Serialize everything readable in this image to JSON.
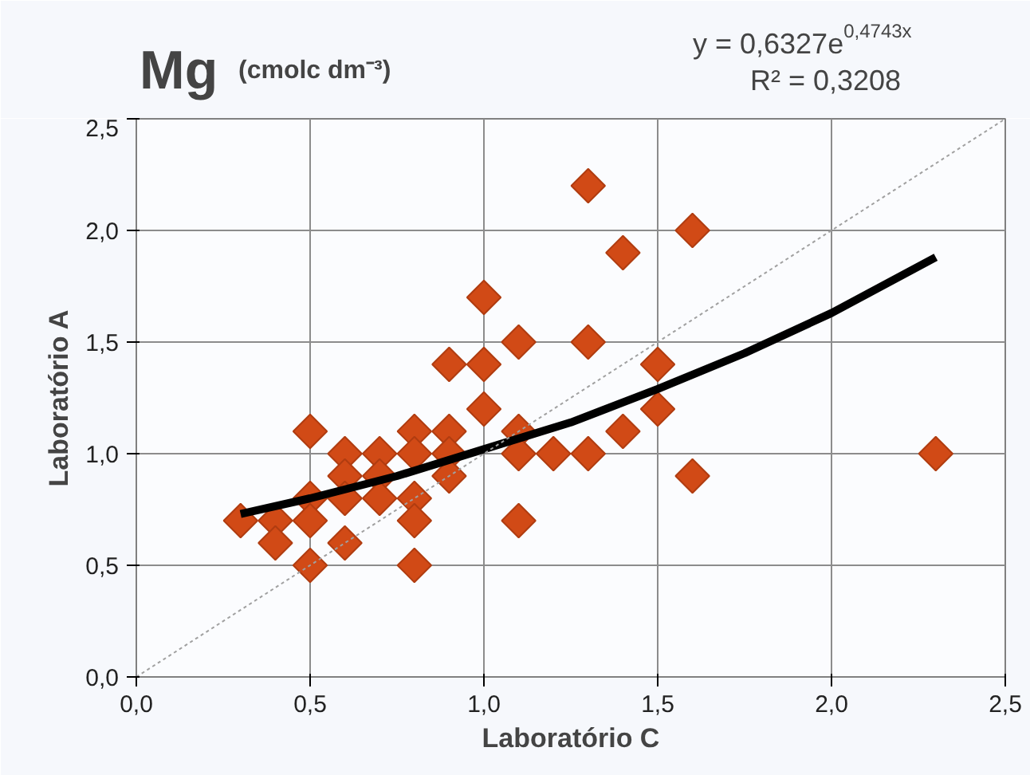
{
  "chart_data": {
    "type": "scatter",
    "title": "Mg",
    "subtitle": "(cmolc dm⁻³)",
    "xlabel": "Laboratório C",
    "ylabel": "Laboratório A",
    "annotations": [
      "y = 0,6327e$^{0,4743x}$",
      "R² = 0,3208"
    ],
    "xlim": [
      0,
      2.5
    ],
    "ylim": [
      0,
      2.5
    ],
    "xticks": [
      {
        "value": 0,
        "label": "0,0"
      },
      {
        "value": 0.5,
        "label": "0,5"
      },
      {
        "value": 1,
        "label": "1,0"
      },
      {
        "value": 1.5,
        "label": "1,5"
      },
      {
        "value": 2,
        "label": "2,0"
      },
      {
        "value": 2.5,
        "label": "2,5"
      }
    ],
    "yticks": [
      {
        "value": 0,
        "label": "0,0"
      },
      {
        "value": 0.5,
        "label": "0,5"
      },
      {
        "value": 1,
        "label": "1,0"
      },
      {
        "value": 1.5,
        "label": "1,5"
      },
      {
        "value": 2,
        "label": "2,0"
      },
      {
        "value": 2.5,
        "label": "2,5"
      }
    ],
    "grid": true,
    "series": [
      {
        "color": "#d14a16",
        "marker": "diamond",
        "x": [
          0.3,
          0.4,
          0.4,
          0.5,
          0.5,
          0.5,
          0.5,
          0.6,
          0.6,
          0.6,
          0.6,
          0.7,
          0.7,
          0.7,
          0.8,
          0.8,
          0.8,
          0.8,
          0.8,
          0.9,
          0.9,
          0.9,
          0.9,
          1.0,
          1.0,
          1.0,
          1.1,
          1.1,
          1.1,
          1.1,
          1.2,
          1.3,
          1.3,
          1.3,
          1.4,
          1.4,
          1.5,
          1.5,
          1.6,
          1.6,
          2.3
        ],
        "values": [
          0.7,
          0.7,
          0.6,
          1.1,
          0.8,
          0.7,
          0.5,
          1.0,
          0.9,
          0.8,
          0.6,
          1.0,
          0.9,
          0.8,
          1.1,
          1.0,
          0.8,
          0.7,
          0.5,
          1.4,
          1.1,
          1.0,
          0.9,
          1.7,
          1.4,
          1.2,
          1.5,
          1.1,
          1.0,
          0.7,
          1.0,
          2.2,
          1.5,
          1.0,
          1.9,
          1.1,
          1.4,
          1.2,
          2.0,
          0.9,
          1.0
        ]
      },
      {
        "type": "line",
        "color": "#000000",
        "line_style": "solid",
        "marker": "none",
        "x": [
          0.3,
          0.5,
          0.75,
          1.0,
          1.25,
          1.5,
          1.75,
          2.0,
          2.3
        ],
        "values": [
          0.73,
          0.8,
          0.9,
          1.02,
          1.14,
          1.29,
          1.45,
          1.63,
          1.88
        ]
      },
      {
        "type": "line",
        "color": "#a0a0a0",
        "line_style": "dotted",
        "marker": "none",
        "x": [
          0,
          2.5
        ],
        "values": [
          0,
          2.5
        ]
      }
    ]
  }
}
